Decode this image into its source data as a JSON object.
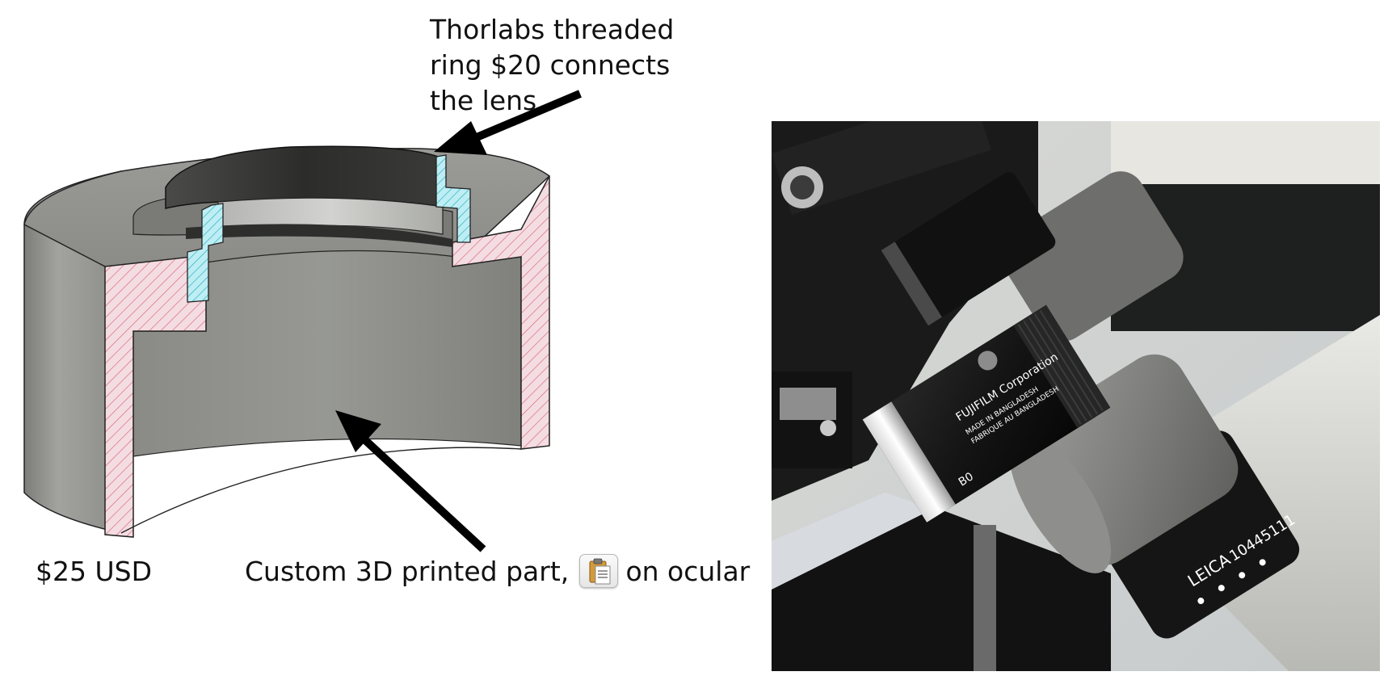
{
  "labels": {
    "thorlabs_ring": "Thorlabs threaded ring $20 connects the lens",
    "price": "$25 USD",
    "custom_part_head": "Custom 3D printed part,",
    "custom_part_tail": "s on ocular"
  },
  "photo": {
    "lens_brand_text": "FUJIFILM Corporation",
    "lens_origin_text": "MADE IN BANGLADESH",
    "lens_origin_text_2": "FABRIQUE AU BANGLADESH",
    "ocular_brand_text": "LEICA",
    "ocular_serial_text": "10445111",
    "lens_mark_text": "B0"
  },
  "icons": {
    "paste": "clipboard-paste-icon"
  },
  "colors": {
    "cut_face_part": "#f4dde2",
    "cut_hatch_part": "#d96b80",
    "cut_face_ring": "#bdeef4",
    "cut_hatch_ring": "#2aa8bd",
    "body_gray": "#8f908b",
    "arrow": "#000000"
  }
}
